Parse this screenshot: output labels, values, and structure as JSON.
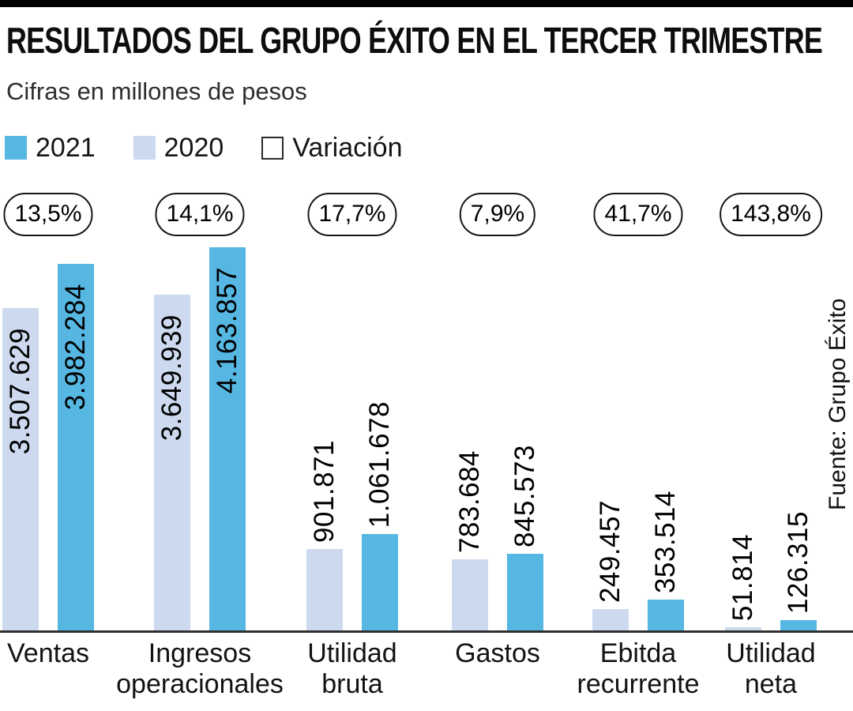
{
  "page": {
    "accent_bar_color": "#000000",
    "background_color": "#ffffff"
  },
  "chart_data": {
    "type": "bar",
    "title": "RESULTADOS DEL GRUPO ÉXITO EN EL TERCER TRIMESTRE",
    "subtitle": "Cifras en millones de pesos",
    "source": "Fuente: Grupo Éxito",
    "grid": false,
    "legend_position": "top-left",
    "legend": [
      {
        "label": "2021",
        "color": "#56b7e2",
        "style": "filled"
      },
      {
        "label": "2020",
        "color": "#ccd9ee",
        "style": "filled"
      },
      {
        "label": "Variación",
        "color": "#ffffff",
        "style": "outlined"
      }
    ],
    "categories": [
      "Ventas",
      "Ingresos operacionales",
      "Utilidad bruta",
      "Gastos",
      "Ebitda recurrente",
      "Utilidad neta"
    ],
    "category_label_lines": [
      [
        "Ventas"
      ],
      [
        "Ingresos",
        "operacionales"
      ],
      [
        "Utilidad",
        "bruta"
      ],
      [
        "Gastos"
      ],
      [
        "Ebitda",
        "recurrente"
      ],
      [
        "Utilidad",
        "neta"
      ]
    ],
    "series": [
      {
        "name": "2020",
        "color": "#ccd9ee",
        "values": [
          3507629,
          3649939,
          901871,
          783684,
          249457,
          51814
        ],
        "value_labels": [
          "3.507.629",
          "3.649.939",
          "901.871",
          "783.684",
          "249.457",
          "51.814"
        ]
      },
      {
        "name": "2021",
        "color": "#56b7e2",
        "values": [
          3982284,
          4163857,
          1061678,
          845573,
          353514,
          126315
        ],
        "value_labels": [
          "3.982.284",
          "4.163.857",
          "1.061.678",
          "845.573",
          "353.514",
          "126.315"
        ]
      }
    ],
    "variations": [
      "13,5%",
      "14,1%",
      "17,7%",
      "7,9%",
      "41,7%",
      "143,8%"
    ],
    "ylim": [
      0,
      4163857
    ],
    "axis_color": "#2f2f2f"
  }
}
